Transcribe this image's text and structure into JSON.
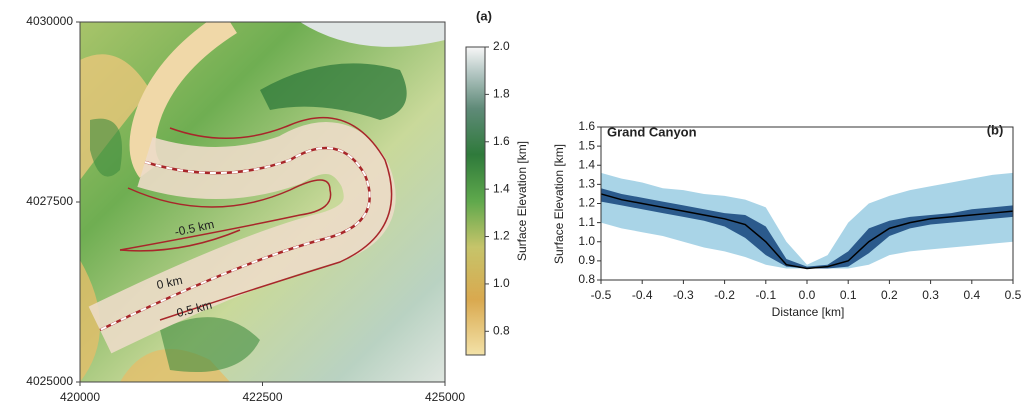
{
  "chart_data": [
    {
      "type": "map",
      "panel_label": "(a)",
      "xlim": [
        420000,
        425000
      ],
      "xticks": [
        420000,
        422500,
        425000
      ],
      "ylim": [
        4025000,
        4030000
      ],
      "yticks": [
        4025000,
        4027500,
        4030000
      ],
      "colorbar_label": "Surface Elevation [km]",
      "clim": [
        0.7,
        2.0
      ],
      "colorbar_ticks": [
        {
          "value": 2,
          "label": "2.0"
        },
        1.8,
        1.6,
        1.4,
        1.2,
        {
          "value": 1,
          "label": "1.0"
        },
        0.8
      ],
      "contour_labels": [
        "-0.5 km",
        "0 km",
        "0.5 km"
      ]
    },
    {
      "type": "line",
      "title": "Grand Canyon",
      "panel_label": "(b)",
      "xlabel": "Distance [km]",
      "ylabel": "Surface Elevation [km]",
      "x": [
        -0.5,
        -0.45,
        -0.4,
        -0.35,
        -0.3,
        -0.25,
        -0.2,
        -0.15,
        -0.1,
        -0.05,
        0,
        0.05,
        0.1,
        0.15,
        0.2,
        0.25,
        0.3,
        0.35,
        0.4,
        0.45,
        0.5
      ],
      "xlim": [
        -0.5,
        0.5
      ],
      "xticks": [
        -0.5,
        -0.4,
        -0.3,
        -0.2,
        -0.1,
        {
          "value": 0,
          "label": "0.0"
        },
        0.1,
        0.2,
        0.3,
        0.4,
        0.5
      ],
      "ylim": [
        0.8,
        1.6
      ],
      "yticks": [
        0.8,
        0.9,
        {
          "value": 1,
          "label": "1.0"
        },
        1.1,
        1.2,
        1.3,
        1.4,
        1.5,
        1.6
      ],
      "bands": [
        {
          "color": "#a9d4e7",
          "lower": [
            1.1,
            1.07,
            1.05,
            1.03,
            1.0,
            0.97,
            0.95,
            0.92,
            0.88,
            0.86,
            0.86,
            0.86,
            0.86,
            0.88,
            0.93,
            0.95,
            0.96,
            0.97,
            0.98,
            0.99,
            1.0
          ],
          "upper": [
            1.36,
            1.33,
            1.31,
            1.28,
            1.27,
            1.25,
            1.24,
            1.22,
            1.18,
            1.0,
            0.88,
            0.93,
            1.1,
            1.2,
            1.24,
            1.27,
            1.29,
            1.31,
            1.33,
            1.35,
            1.36
          ]
        },
        {
          "color": "#2b5a8c",
          "lower": [
            1.21,
            1.19,
            1.17,
            1.15,
            1.13,
            1.11,
            1.08,
            1.02,
            0.93,
            0.87,
            0.86,
            0.86,
            0.87,
            0.94,
            1.03,
            1.07,
            1.09,
            1.1,
            1.11,
            1.12,
            1.13
          ],
          "upper": [
            1.28,
            1.25,
            1.23,
            1.21,
            1.19,
            1.17,
            1.15,
            1.14,
            1.08,
            0.91,
            0.87,
            0.88,
            0.95,
            1.07,
            1.11,
            1.13,
            1.14,
            1.15,
            1.17,
            1.18,
            1.19
          ]
        }
      ],
      "series": [
        {
          "color": "#000000",
          "values": [
            1.25,
            1.22,
            1.2,
            1.18,
            1.16,
            1.14,
            1.12,
            1.09,
            1.0,
            0.88,
            0.86,
            0.87,
            0.9,
            1.0,
            1.07,
            1.1,
            1.12,
            1.13,
            1.14,
            1.15,
            1.16
          ]
        }
      ]
    }
  ]
}
